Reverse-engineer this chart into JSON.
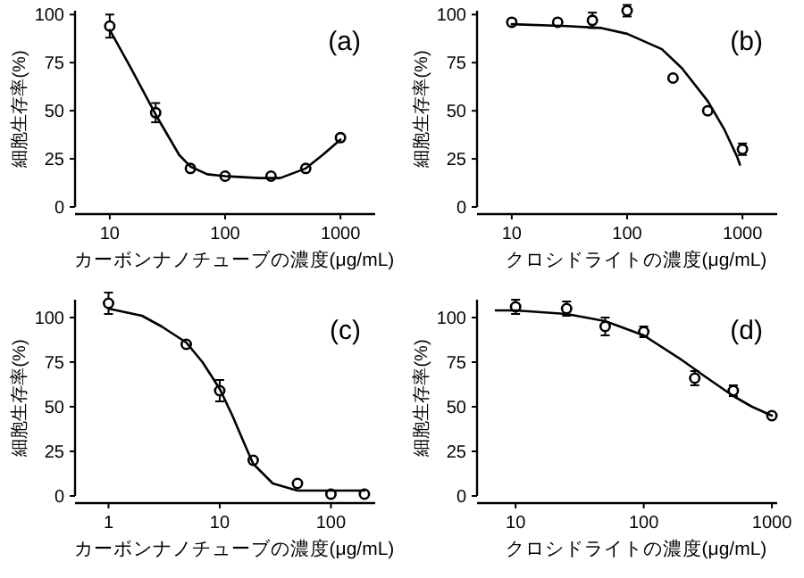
{
  "chart_data": [
    {
      "type": "scatter",
      "xlabel": "カーボンナノチューブの濃度(μg/mL)",
      "ylabel": "細胞生存率(%)",
      "annotations": [
        "(a)"
      ],
      "log": "x",
      "xlim": [
        5,
        2000
      ],
      "xticks": [
        10,
        100,
        1000
      ],
      "ylim": [
        0,
        102
      ],
      "yticks": [
        0,
        25,
        50,
        75,
        100
      ],
      "grid": false,
      "series": [
        {
          "type": "scatter",
          "marker": "circle",
          "color": "#000000",
          "x": [
            10,
            25,
            50,
            100,
            250,
            500,
            1000
          ],
          "values": [
            94,
            49,
            20,
            16,
            16,
            20,
            36
          ],
          "errors": [
            6,
            5,
            null,
            null,
            null,
            null,
            null
          ]
        },
        {
          "type": "line",
          "marker": "none",
          "line_style": "solid",
          "color": "#000000",
          "x": [
            10,
            15,
            25,
            40,
            50,
            70,
            100,
            200,
            300,
            500,
            700,
            1000
          ],
          "values": [
            92,
            73,
            48,
            27,
            21,
            17,
            16,
            15,
            15,
            20,
            27,
            35
          ]
        }
      ]
    },
    {
      "type": "scatter",
      "xlabel": "クロシドライトの濃度(μg/mL)",
      "ylabel": "細胞生存率(%)",
      "annotations": [
        "(b)"
      ],
      "log": "x",
      "xlim": [
        5,
        2000
      ],
      "xticks": [
        10,
        100,
        1000
      ],
      "ylim": [
        0,
        102
      ],
      "yticks": [
        0,
        25,
        50,
        75,
        100
      ],
      "grid": false,
      "series": [
        {
          "type": "scatter",
          "marker": "circle",
          "color": "#000000",
          "x": [
            10,
            25,
            50,
            100,
            250,
            500,
            1000
          ],
          "values": [
            96,
            96,
            97,
            102,
            67,
            50,
            30
          ],
          "errors": [
            null,
            null,
            4,
            3,
            null,
            null,
            3
          ]
        },
        {
          "type": "line",
          "marker": "none",
          "line_style": "solid",
          "color": "#000000",
          "x": [
            10,
            30,
            60,
            100,
            200,
            300,
            500,
            700,
            900,
            950
          ],
          "values": [
            95,
            94,
            93,
            90,
            82,
            72,
            55,
            40,
            26,
            22
          ]
        }
      ]
    },
    {
      "type": "scatter",
      "xlabel": "カーボンナノチューブの濃度(μg/mL)",
      "ylabel": "細胞生存率(%)",
      "annotations": [
        "(c)"
      ],
      "log": "x",
      "xlim": [
        0.5,
        250
      ],
      "xticks": [
        1,
        10,
        100
      ],
      "ylim": [
        0,
        110
      ],
      "yticks": [
        0,
        25,
        50,
        75,
        100
      ],
      "grid": false,
      "series": [
        {
          "type": "scatter",
          "marker": "circle",
          "color": "#000000",
          "x": [
            1,
            5,
            10,
            20,
            50,
            100,
            200
          ],
          "values": [
            108,
            85,
            59,
            20,
            7,
            1,
            1
          ],
          "errors": [
            6,
            null,
            6,
            null,
            null,
            null,
            null
          ]
        },
        {
          "type": "line",
          "marker": "none",
          "line_style": "solid",
          "color": "#000000",
          "x": [
            1,
            2,
            3,
            5,
            7,
            10,
            13,
            17,
            20,
            30,
            50,
            100,
            200
          ],
          "values": [
            105,
            101,
            95,
            86,
            75,
            60,
            45,
            28,
            18,
            7,
            3,
            3,
            3
          ]
        }
      ]
    },
    {
      "type": "scatter",
      "xlabel": "クロシドライトの濃度(μg/mL)",
      "ylabel": "細胞生存率(%)",
      "annotations": [
        "(d)"
      ],
      "log": "x",
      "xlim": [
        5,
        1100
      ],
      "xticks": [
        10,
        100,
        1000
      ],
      "ylim": [
        0,
        110
      ],
      "yticks": [
        0,
        25,
        50,
        75,
        100
      ],
      "grid": false,
      "series": [
        {
          "type": "scatter",
          "marker": "circle",
          "color": "#000000",
          "x": [
            10,
            25,
            50,
            100,
            250,
            500,
            1000
          ],
          "values": [
            106,
            105,
            95,
            92,
            66,
            59,
            45
          ],
          "errors": [
            4,
            4,
            5,
            3,
            4,
            3,
            null
          ]
        },
        {
          "type": "line",
          "marker": "none",
          "line_style": "solid",
          "color": "#000000",
          "x": [
            7,
            10,
            25,
            50,
            100,
            200,
            300,
            500,
            700,
            1000
          ],
          "values": [
            104,
            104,
            102,
            98,
            90,
            76,
            67,
            56,
            50,
            45
          ]
        }
      ]
    }
  ]
}
